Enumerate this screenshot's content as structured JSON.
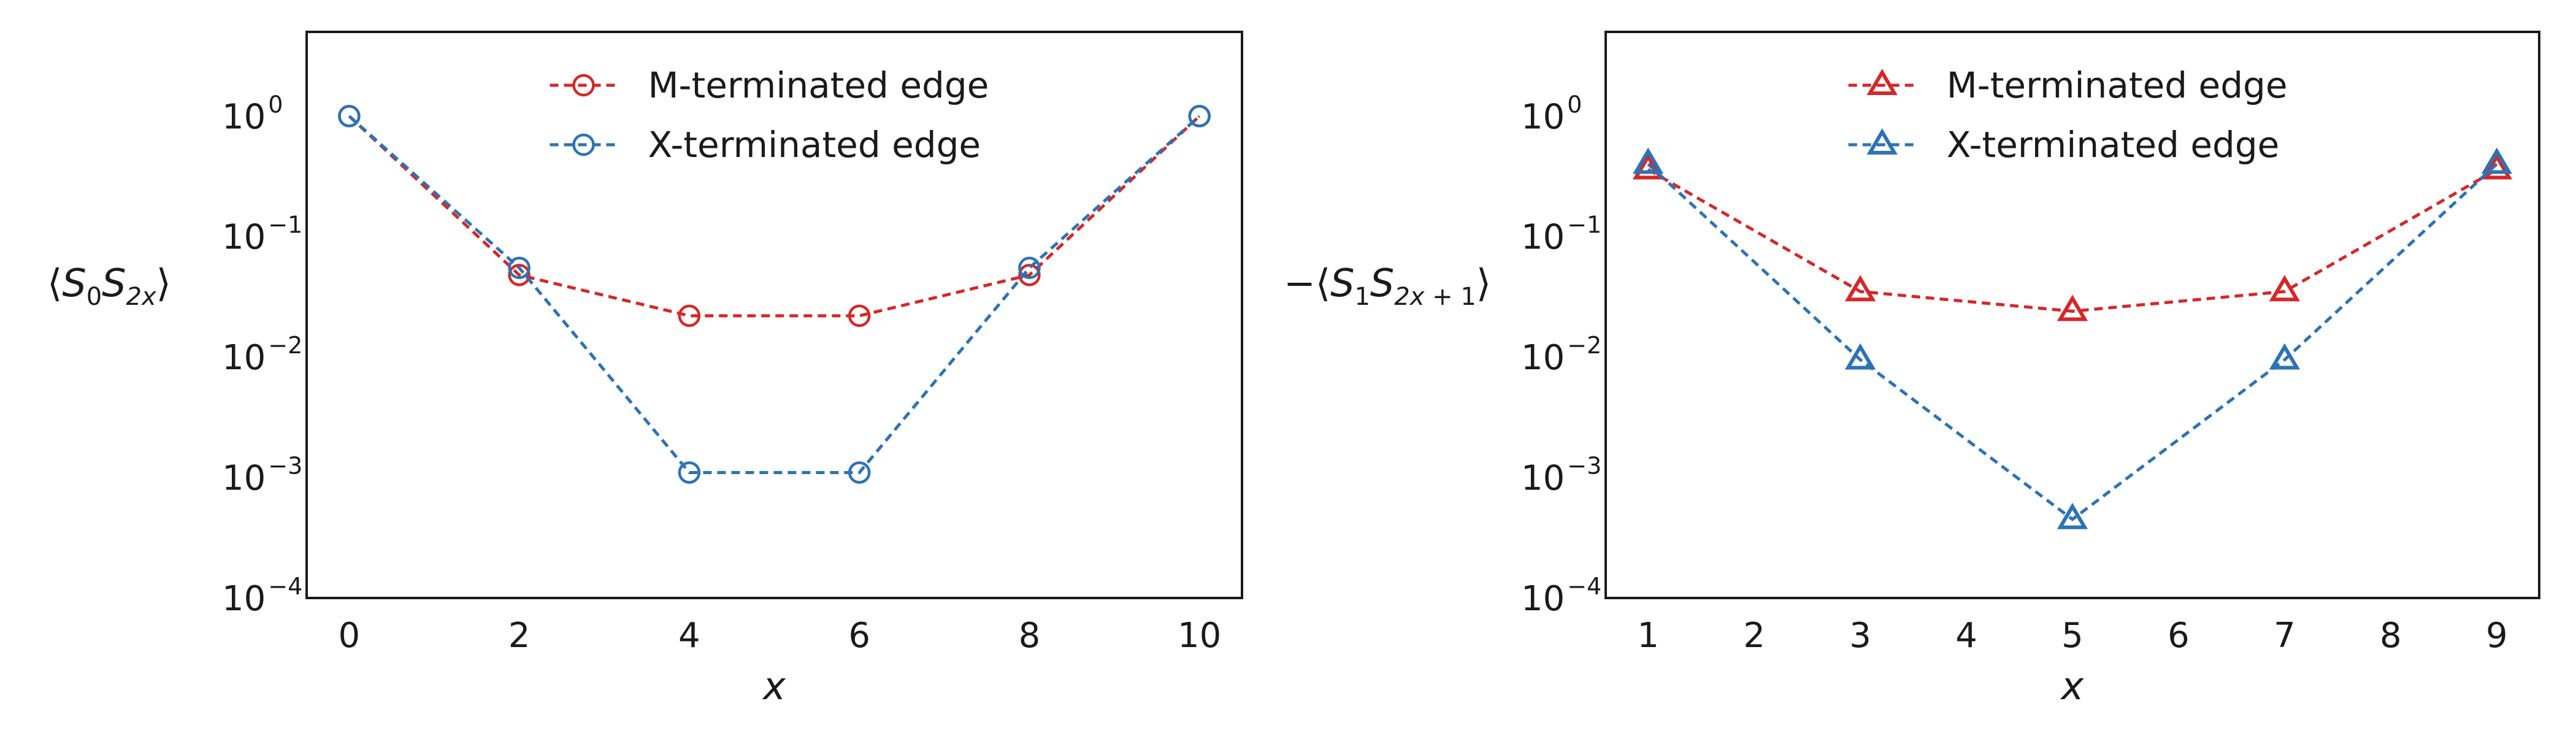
{
  "chart_data": [
    {
      "type": "line",
      "yscale": "log",
      "ylim": [
        0.0001,
        5
      ],
      "xlim": [
        -0.5,
        10.5
      ],
      "xticks": [
        0,
        2,
        4,
        6,
        8,
        10
      ],
      "xlabel": "x",
      "ylabel": "⟨S0S2x⟩",
      "ylabel_parts": {
        "open": "⟨S",
        "s1": "0",
        "mid": "S",
        "s2a": "2x",
        "close": "⟩"
      },
      "yticks": [
        {
          "base": "10",
          "exp": "0"
        },
        {
          "base": "10",
          "exp": "−1"
        },
        {
          "base": "10",
          "exp": "−2"
        },
        {
          "base": "10",
          "exp": "−3"
        },
        {
          "base": "10",
          "exp": "−4"
        }
      ],
      "grid": false,
      "legend": "top-center",
      "marker": "circle",
      "series": [
        {
          "name": "M-terminated edge",
          "color": "#d62728",
          "x": [
            0,
            2,
            4,
            6,
            8,
            10
          ],
          "y": [
            1.0,
            0.048,
            0.022,
            0.022,
            0.048,
            1.0
          ]
        },
        {
          "name": "X-terminated edge",
          "color": "#2c73b4",
          "x": [
            0,
            2,
            4,
            6,
            8,
            10
          ],
          "y": [
            1.0,
            0.055,
            0.0011,
            0.0011,
            0.055,
            1.0
          ]
        }
      ]
    },
    {
      "type": "line",
      "yscale": "log",
      "ylim": [
        0.0001,
        5
      ],
      "xlim": [
        0.6,
        9.4
      ],
      "xticks": [
        1,
        2,
        3,
        4,
        5,
        6,
        7,
        8,
        9
      ],
      "xlabel": "x",
      "ylabel": "−⟨S1S2x+1⟩",
      "ylabel_parts": {
        "open": "−⟨S",
        "s1": "1",
        "mid": "S",
        "s2a": "2x",
        "s2b": " + 1",
        "close": "⟩"
      },
      "yticks": [
        {
          "base": "10",
          "exp": "0"
        },
        {
          "base": "10",
          "exp": "−1"
        },
        {
          "base": "10",
          "exp": "−2"
        },
        {
          "base": "10",
          "exp": "−3"
        },
        {
          "base": "10",
          "exp": "−4"
        }
      ],
      "grid": false,
      "legend": "top-center",
      "marker": "triangle",
      "series": [
        {
          "name": "M-terminated edge",
          "color": "#d62728",
          "x": [
            1,
            3,
            5,
            7,
            9
          ],
          "y": [
            0.36,
            0.035,
            0.024,
            0.035,
            0.36
          ]
        },
        {
          "name": "X-terminated edge",
          "color": "#2c73b4",
          "x": [
            1,
            3,
            5,
            7,
            9
          ],
          "y": [
            0.4,
            0.0095,
            0.00045,
            0.0095,
            0.4
          ]
        }
      ]
    }
  ]
}
